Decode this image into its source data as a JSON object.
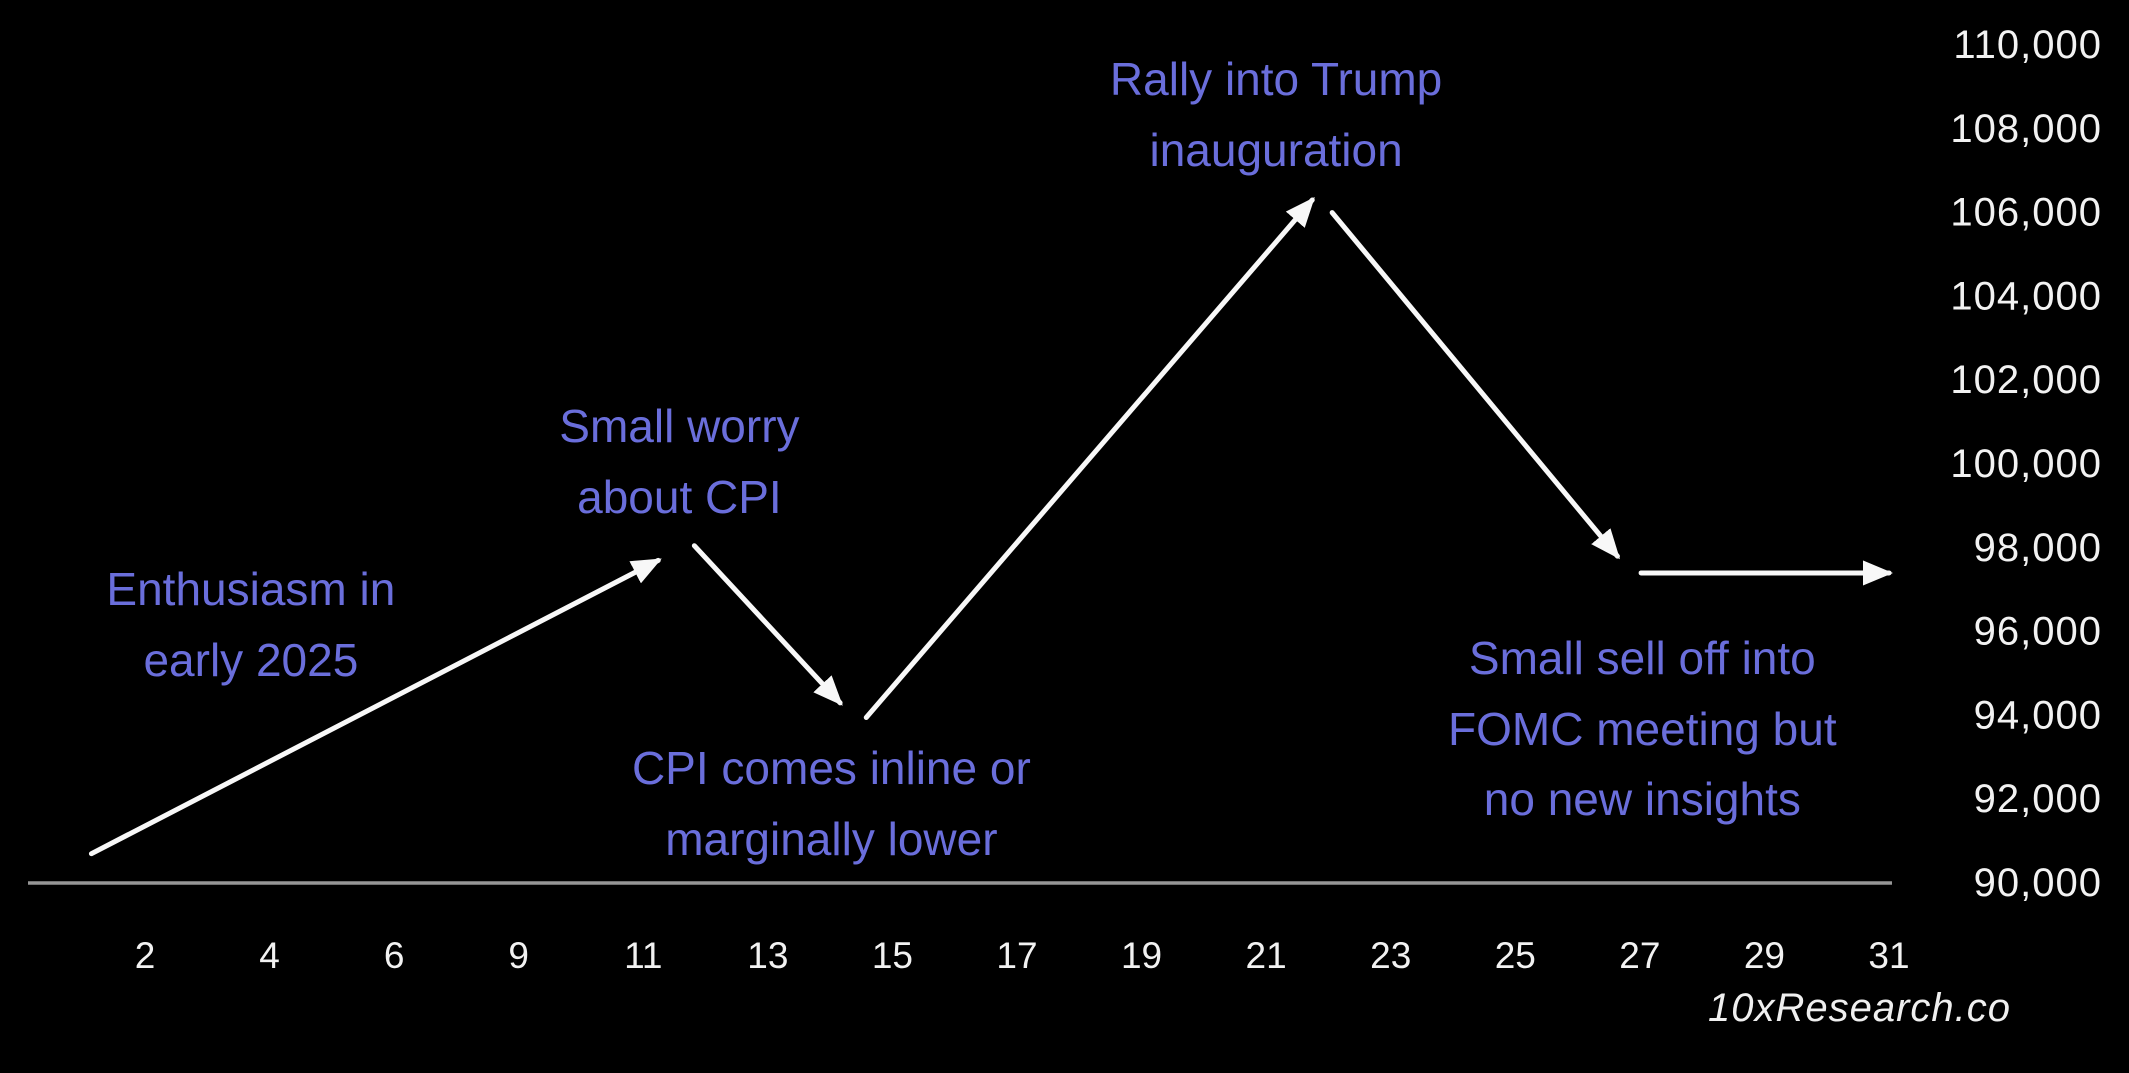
{
  "watermark": {
    "text": "10xResearch.co"
  },
  "colors": {
    "background": "#000000",
    "annotation_text": "#6a6edb",
    "axis_text": "#f2f2f2",
    "axis_line": "#969696",
    "arrow": "#f8f8f8",
    "watermark": "#efefef"
  },
  "chart_data": {
    "type": "line",
    "title": "",
    "description": "Projected price path drawn as white arrow segments on black background with purple annotations",
    "grid": false,
    "legend": false,
    "x_axis": {
      "tick_labels": [
        "2",
        "4",
        "6",
        "9",
        "11",
        "13",
        "15",
        "17",
        "19",
        "21",
        "23",
        "25",
        "27",
        "29",
        "31"
      ],
      "position": "bottom"
    },
    "y_axis": {
      "tick_labels": [
        "110,000",
        "108,000",
        "106,000",
        "104,000",
        "102,000",
        "100,000",
        "98,000",
        "96,000",
        "94,000",
        "92,000",
        "90,000"
      ],
      "range": [
        90000,
        110000
      ],
      "tick_step": 2000,
      "position": "right"
    },
    "key_points": [
      {
        "day": "2",
        "price": 90700
      },
      {
        "day": "11",
        "price": 97800
      },
      {
        "day": "14",
        "price": 94200
      },
      {
        "day": "22",
        "price": 106300
      },
      {
        "day": "27",
        "price": 97600
      },
      {
        "day": "31",
        "price": 97400
      }
    ],
    "segments": [
      {
        "id": "rise-early-jan",
        "arrow": true,
        "from": {
          "slot": -0.43,
          "price": 90700
        },
        "to": {
          "slot": 4.12,
          "price": 97700
        }
      },
      {
        "id": "dip-into-cpi",
        "arrow": true,
        "from": {
          "slot": 4.41,
          "price": 98050
        },
        "to": {
          "slot": 5.58,
          "price": 94300
        }
      },
      {
        "id": "rally-inauguration",
        "arrow": true,
        "from": {
          "slot": 5.79,
          "price": 93950
        },
        "to": {
          "slot": 9.37,
          "price": 106300
        }
      },
      {
        "id": "selloff-fomc",
        "arrow": true,
        "from": {
          "slot": 9.53,
          "price": 106000
        },
        "to": {
          "slot": 11.82,
          "price": 97800
        }
      },
      {
        "id": "flat-month-end",
        "arrow": true,
        "from": {
          "slot": 12.01,
          "price": 97400
        },
        "to": {
          "slot": 14.0,
          "price": 97400
        }
      }
    ],
    "annotations": [
      {
        "id": "enthusiasm",
        "lines": [
          "Enthusiasm in",
          "early 2025"
        ],
        "slot": 0.85,
        "price": 96160
      },
      {
        "id": "cpi-worry",
        "lines": [
          "Small worry",
          "about CPI"
        ],
        "slot": 4.29,
        "price": 100050
      },
      {
        "id": "rally-trump",
        "lines": [
          "Rally into Trump",
          "inauguration"
        ],
        "slot": 9.08,
        "price": 108330
      },
      {
        "id": "cpi-inline",
        "lines": [
          "CPI comes inline or",
          "marginally lower"
        ],
        "slot": 5.51,
        "price": 91890
      },
      {
        "id": "fomc-selloff",
        "lines": [
          "Small sell off into",
          "FOMC meeting but",
          "no new insights"
        ],
        "slot": 12.02,
        "price": 93680
      }
    ]
  }
}
